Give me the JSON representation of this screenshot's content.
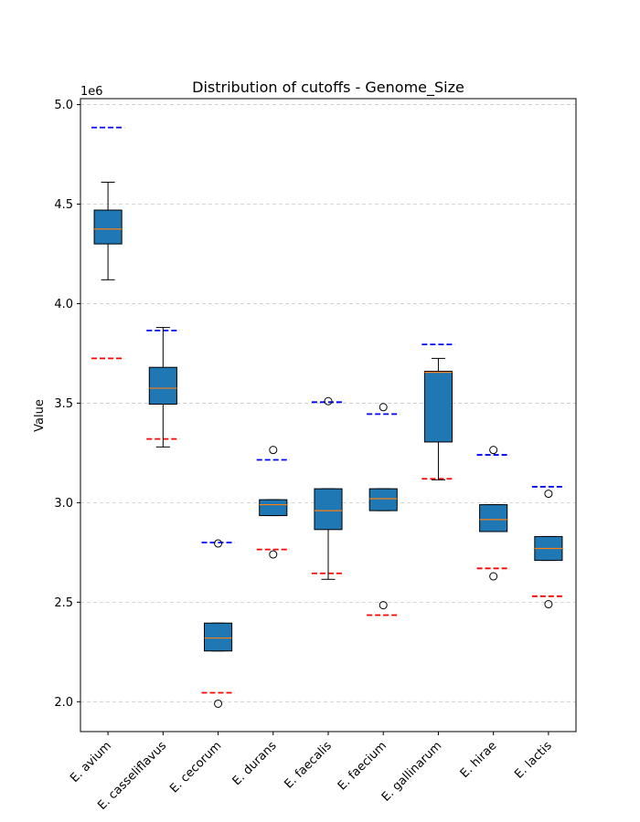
{
  "chart_data": {
    "type": "boxplot",
    "title": "Distribution of cutoffs - Genome_Size",
    "xlabel": "",
    "ylabel": "Value",
    "y_multiplier_label": "1e6",
    "ylim": [
      1850000,
      5030000
    ],
    "yticks": [
      2000000,
      2500000,
      3000000,
      3500000,
      4000000,
      4500000,
      5000000
    ],
    "ytick_labels": [
      "2.0",
      "2.5",
      "3.0",
      "3.5",
      "4.0",
      "4.5",
      "5.0"
    ],
    "grid": "y-dashed",
    "colors": {
      "box_fill": "#1f77b4",
      "median": "#ff7f0e",
      "upper_cutoff": "#0000ff",
      "lower_cutoff": "#ff0000",
      "grid": "#cccccc"
    },
    "categories": [
      "E. avium",
      "E. casseliflavus",
      "E. cecorum",
      "E. durans",
      "E. faecalis",
      "E. faecium",
      "E. gallinarum",
      "E. hirae",
      "E. lactis"
    ],
    "boxes": [
      {
        "q1": 4300000,
        "median": 4375000,
        "q3": 4470000,
        "whisker_low": 4120000,
        "whisker_high": 4610000,
        "outliers": [],
        "upper_cutoff": 4885000,
        "lower_cutoff": 3725000
      },
      {
        "q1": 3495000,
        "median": 3575000,
        "q3": 3680000,
        "whisker_low": 3280000,
        "whisker_high": 3880000,
        "outliers": [],
        "upper_cutoff": 3865000,
        "lower_cutoff": 3320000
      },
      {
        "q1": 2255000,
        "median": 2320000,
        "q3": 2395000,
        "whisker_low": 2255000,
        "whisker_high": 2395000,
        "outliers": [
          2795000,
          1990000
        ],
        "upper_cutoff": 2800000,
        "lower_cutoff": 2045000
      },
      {
        "q1": 2935000,
        "median": 2990000,
        "q3": 3015000,
        "whisker_low": 2935000,
        "whisker_high": 3015000,
        "outliers": [
          3265000,
          2740000
        ],
        "upper_cutoff": 3215000,
        "lower_cutoff": 2765000
      },
      {
        "q1": 2865000,
        "median": 2960000,
        "q3": 3070000,
        "whisker_low": 2615000,
        "whisker_high": 3070000,
        "outliers": [
          3510000
        ],
        "upper_cutoff": 3505000,
        "lower_cutoff": 2645000
      },
      {
        "q1": 2960000,
        "median": 3020000,
        "q3": 3070000,
        "whisker_low": 2960000,
        "whisker_high": 3070000,
        "outliers": [
          3480000,
          2485000
        ],
        "upper_cutoff": 3445000,
        "lower_cutoff": 2435000
      },
      {
        "q1": 3305000,
        "median": 3655000,
        "q3": 3660000,
        "whisker_low": 3115000,
        "whisker_high": 3725000,
        "outliers": [],
        "upper_cutoff": 3795000,
        "lower_cutoff": 3120000
      },
      {
        "q1": 2855000,
        "median": 2915000,
        "q3": 2990000,
        "whisker_low": 2855000,
        "whisker_high": 2990000,
        "outliers": [
          3265000,
          2630000
        ],
        "upper_cutoff": 3240000,
        "lower_cutoff": 2670000
      },
      {
        "q1": 2710000,
        "median": 2770000,
        "q3": 2830000,
        "whisker_low": 2710000,
        "whisker_high": 2830000,
        "outliers": [
          3045000,
          2490000
        ],
        "upper_cutoff": 3080000,
        "lower_cutoff": 2530000
      }
    ]
  }
}
